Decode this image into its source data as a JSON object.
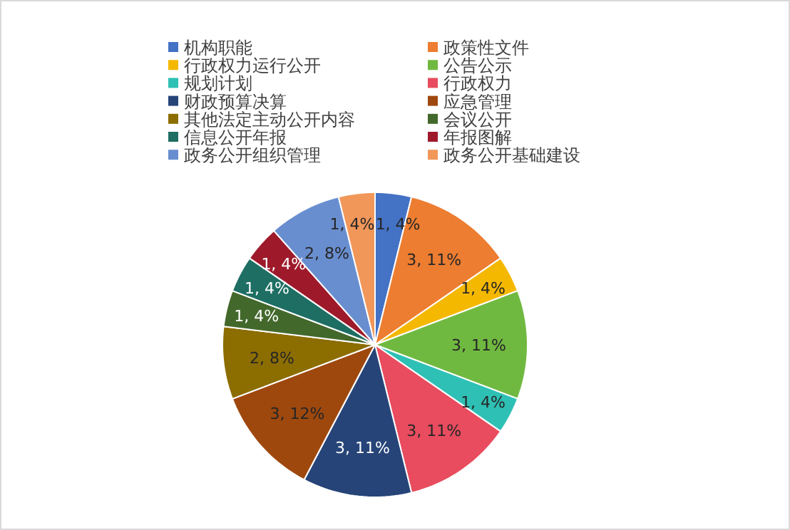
{
  "chart_data": {
    "type": "pie",
    "categories": [
      "机构职能",
      "政策性文件",
      "行政权力运行公开",
      "公告公示",
      "规划计划",
      "行政权力",
      "财政预算决算",
      "应急管理",
      "其他法定主动公开内容",
      "会议公开",
      "信息公开年报",
      "年报图解",
      "政务公开组织管理",
      "政务公开基础建设"
    ],
    "values": [
      1,
      3,
      1,
      3,
      1,
      3,
      3,
      3,
      2,
      1,
      1,
      1,
      2,
      1
    ],
    "value_labels": [
      "1, 4%",
      "3, 11%",
      "1, 4%",
      "3, 11%",
      "1, 4%",
      "3, 11%",
      "3, 11%",
      "3, 12%",
      "2, 8%",
      "1, 4%",
      "1, 4%",
      "1, 4%",
      "2, 8%",
      "1, 4%"
    ],
    "colors": [
      "#4472c4",
      "#ed7d31",
      "#f5b800",
      "#70b941",
      "#2ec0b4",
      "#e84c5e",
      "#264478",
      "#9e480e",
      "#8c6d00",
      "#43682b",
      "#1e6e63",
      "#9e1a2b",
      "#698ed0",
      "#f1975a"
    ],
    "legend": "top"
  }
}
